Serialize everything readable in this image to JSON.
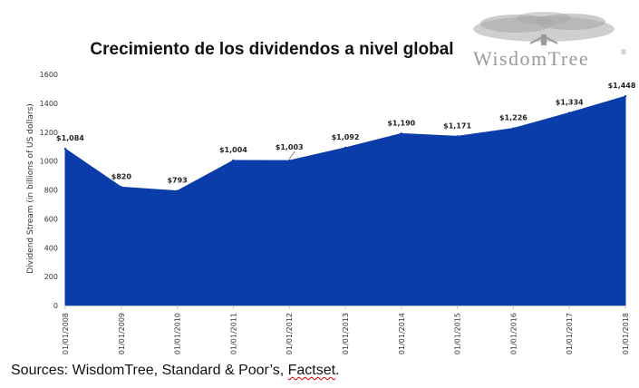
{
  "chart_data": {
    "type": "area",
    "title": "Crecimiento de los dividendos a nivel global",
    "ylabel": "Dividend Stream (in billions of US dollars)",
    "xlabel": "",
    "ylim": [
      0,
      1600
    ],
    "yticks": [
      0,
      200,
      400,
      600,
      800,
      1000,
      1200,
      1400,
      1600
    ],
    "x": [
      "01/01/2008",
      "01/01/2009",
      "01/01/2010",
      "01/01/2011",
      "01/01/2012",
      "01/01/2013",
      "01/01/2014",
      "01/01/2015",
      "01/01/2016",
      "01/01/2017",
      "01/01/2018"
    ],
    "values": [
      1084,
      820,
      793,
      1004,
      1003,
      1092,
      1190,
      1171,
      1226,
      1334,
      1448
    ],
    "data_labels": [
      "$1,084",
      "$820",
      "$793",
      "$1,004",
      "$1,003",
      "$1,092",
      "$1,190",
      "$1,171",
      "$1,226",
      "$1,334",
      "$1,448"
    ],
    "fill_color": "#0a3caa",
    "grid": false,
    "legend": "none"
  },
  "logo": {
    "text": "WisdomTree",
    "mark": "®",
    "color": "#9a9a9a",
    "icon": "tree-icon"
  },
  "footer": {
    "source_prefix": "Sources: WisdomTree, Standard & Poor’s, ",
    "source_last": "Factset",
    "source_end": "."
  }
}
